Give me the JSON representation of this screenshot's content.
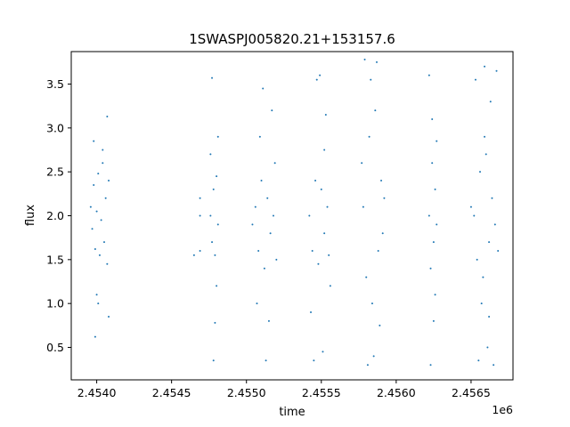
{
  "chart_data": {
    "type": "scatter",
    "title": "1SWASPJ005820.21+153157.6",
    "xlabel": "time",
    "ylabel": "flux",
    "x_offset_label": "1e6",
    "x_unit_scale": 1000000,
    "xlim": [
      2.45383,
      2.45678
    ],
    "ylim": [
      0.13,
      3.87
    ],
    "xticks": [
      2.454,
      2.4545,
      2.455,
      2.4555,
      2.456,
      2.4565
    ],
    "xtick_labels": [
      "2.4540",
      "2.4545",
      "2.4550",
      "2.4555",
      "2.4560",
      "2.4565"
    ],
    "yticks": [
      0.5,
      1.0,
      1.5,
      2.0,
      2.5,
      3.0,
      3.5
    ],
    "ytick_labels": [
      "0.5",
      "1.0",
      "1.5",
      "2.0",
      "2.5",
      "3.0",
      "3.5"
    ],
    "grid": false,
    "marker_color": "#1f77b4",
    "series": [
      {
        "points": [
          [
            2.45396,
            2.1
          ],
          [
            2.45397,
            1.85
          ],
          [
            2.45398,
            2.35
          ],
          [
            2.45399,
            1.62
          ],
          [
            2.454,
            2.05
          ],
          [
            2.45401,
            2.48
          ],
          [
            2.45402,
            1.55
          ],
          [
            2.45403,
            1.95
          ],
          [
            2.45404,
            2.6
          ],
          [
            2.45405,
            1.7
          ],
          [
            2.45406,
            2.2
          ],
          [
            2.45407,
            1.45
          ],
          [
            2.45408,
            2.4
          ],
          [
            2.45398,
            2.85
          ],
          [
            2.45399,
            0.62
          ],
          [
            2.454,
            1.1
          ],
          [
            2.45407,
            3.13
          ],
          [
            2.45408,
            0.85
          ],
          [
            2.45401,
            1.0
          ],
          [
            2.45404,
            2.75
          ],
          [
            2.45476,
            2.0
          ],
          [
            2.45477,
            1.7
          ],
          [
            2.45478,
            2.3
          ],
          [
            2.45479,
            1.55
          ],
          [
            2.4548,
            2.45
          ],
          [
            2.45481,
            1.9
          ],
          [
            2.45476,
            2.7
          ],
          [
            2.45477,
            3.57
          ],
          [
            2.45478,
            0.35
          ],
          [
            2.45479,
            0.78
          ],
          [
            2.4548,
            1.2
          ],
          [
            2.45481,
            2.9
          ],
          [
            2.45469,
            1.6
          ],
          [
            2.45469,
            2.0
          ],
          [
            2.45469,
            2.2
          ],
          [
            2.45465,
            1.55
          ],
          [
            2.45506,
            2.1
          ],
          [
            2.45508,
            1.6
          ],
          [
            2.4551,
            2.4
          ],
          [
            2.45512,
            1.4
          ],
          [
            2.45514,
            2.2
          ],
          [
            2.45516,
            1.8
          ],
          [
            2.45518,
            2.0
          ],
          [
            2.45509,
            2.9
          ],
          [
            2.45511,
            3.45
          ],
          [
            2.45513,
            0.35
          ],
          [
            2.45515,
            0.8
          ],
          [
            2.45517,
            3.2
          ],
          [
            2.4552,
            1.5
          ],
          [
            2.45504,
            1.9
          ],
          [
            2.45507,
            1.0
          ],
          [
            2.45519,
            2.6
          ],
          [
            2.45542,
            2.0
          ],
          [
            2.45544,
            1.6
          ],
          [
            2.45546,
            2.4
          ],
          [
            2.45548,
            1.45
          ],
          [
            2.4555,
            2.3
          ],
          [
            2.45552,
            1.8
          ],
          [
            2.45554,
            2.1
          ],
          [
            2.45547,
            3.55
          ],
          [
            2.45549,
            3.6
          ],
          [
            2.45545,
            0.35
          ],
          [
            2.45551,
            0.45
          ],
          [
            2.45553,
            3.15
          ],
          [
            2.45555,
            1.55
          ],
          [
            2.45543,
            0.9
          ],
          [
            2.45552,
            2.75
          ],
          [
            2.45556,
            1.2
          ],
          [
            2.45578,
            2.1
          ],
          [
            2.4558,
            1.3
          ],
          [
            2.45582,
            2.9
          ],
          [
            2.45584,
            1.0
          ],
          [
            2.45586,
            3.2
          ],
          [
            2.45588,
            1.6
          ],
          [
            2.45579,
            3.78
          ],
          [
            2.45581,
            0.3
          ],
          [
            2.45583,
            3.55
          ],
          [
            2.45585,
            0.4
          ],
          [
            2.45587,
            3.75
          ],
          [
            2.45589,
            0.75
          ],
          [
            2.4559,
            2.4
          ],
          [
            2.45591,
            1.8
          ],
          [
            2.45577,
            2.6
          ],
          [
            2.45592,
            2.2
          ],
          [
            2.45622,
            2.0
          ],
          [
            2.45623,
            1.4
          ],
          [
            2.45624,
            2.6
          ],
          [
            2.45625,
            1.7
          ],
          [
            2.45626,
            2.3
          ],
          [
            2.45627,
            1.9
          ],
          [
            2.45622,
            3.6
          ],
          [
            2.45623,
            0.3
          ],
          [
            2.45624,
            3.1
          ],
          [
            2.45625,
            0.8
          ],
          [
            2.45626,
            1.1
          ],
          [
            2.45627,
            2.85
          ],
          [
            2.45652,
            2.0
          ],
          [
            2.45654,
            1.5
          ],
          [
            2.45656,
            2.5
          ],
          [
            2.45658,
            1.3
          ],
          [
            2.4566,
            2.7
          ],
          [
            2.45662,
            1.7
          ],
          [
            2.45664,
            2.2
          ],
          [
            2.45666,
            1.9
          ],
          [
            2.45653,
            3.55
          ],
          [
            2.45655,
            0.35
          ],
          [
            2.45659,
            3.7
          ],
          [
            2.45661,
            0.5
          ],
          [
            2.45663,
            3.3
          ],
          [
            2.45665,
            0.3
          ],
          [
            2.45667,
            3.65
          ],
          [
            2.45657,
            1.0
          ],
          [
            2.4565,
            2.1
          ],
          [
            2.45668,
            1.6
          ],
          [
            2.45659,
            2.9
          ],
          [
            2.45662,
            0.85
          ]
        ]
      }
    ]
  }
}
